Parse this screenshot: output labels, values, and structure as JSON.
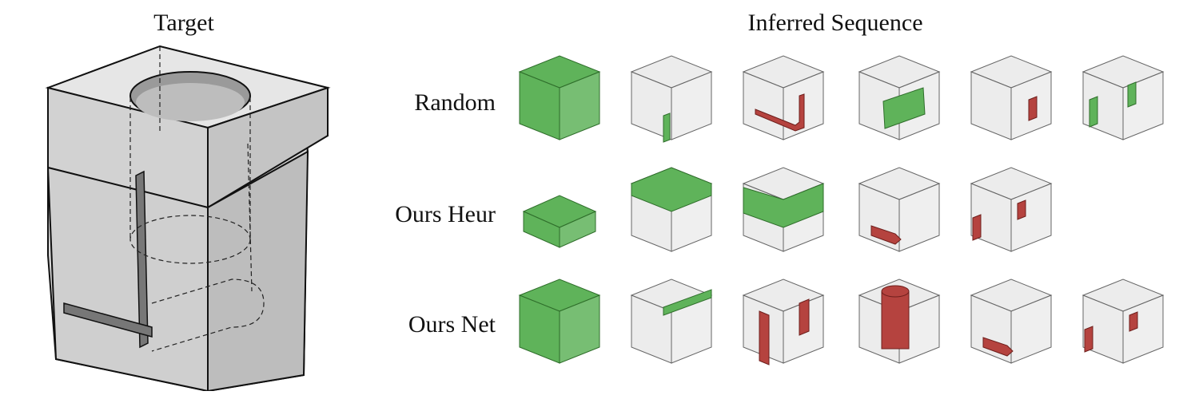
{
  "header": {
    "target_title": "Target",
    "sequence_title": "Inferred Sequence"
  },
  "rows": [
    {
      "label": "Random",
      "steps": [
        {
          "shape": "box-full",
          "highlight": "green"
        },
        {
          "shape": "small-post",
          "highlight": "green"
        },
        {
          "shape": "l-bar",
          "highlight": "red"
        },
        {
          "shape": "mid-block",
          "highlight": "green"
        },
        {
          "shape": "side-plate",
          "highlight": "red"
        },
        {
          "shape": "two-plates",
          "highlight": "green"
        }
      ]
    },
    {
      "label": "Ours Heur",
      "steps": [
        {
          "shape": "tray",
          "highlight": "green"
        },
        {
          "shape": "top-slab-cyl",
          "highlight": "green"
        },
        {
          "shape": "mid-cyl-block",
          "highlight": "green"
        },
        {
          "shape": "floor-slot",
          "highlight": "red"
        },
        {
          "shape": "side-plates",
          "highlight": "red"
        }
      ]
    },
    {
      "label": "Ours Net",
      "steps": [
        {
          "shape": "box-full",
          "highlight": "green"
        },
        {
          "shape": "shelf",
          "highlight": "green"
        },
        {
          "shape": "tall-plates",
          "highlight": "red"
        },
        {
          "shape": "cylinder",
          "highlight": "red"
        },
        {
          "shape": "floor-slot",
          "highlight": "red"
        },
        {
          "shape": "side-plates",
          "highlight": "red"
        }
      ]
    }
  ],
  "colors": {
    "green": "#5fb35a",
    "green_stroke": "#2f6e2b",
    "red": "#b5433f",
    "red_stroke": "#6e1f1c",
    "gray_fill": "#dcdcdc",
    "gray_stroke": "#666666"
  }
}
